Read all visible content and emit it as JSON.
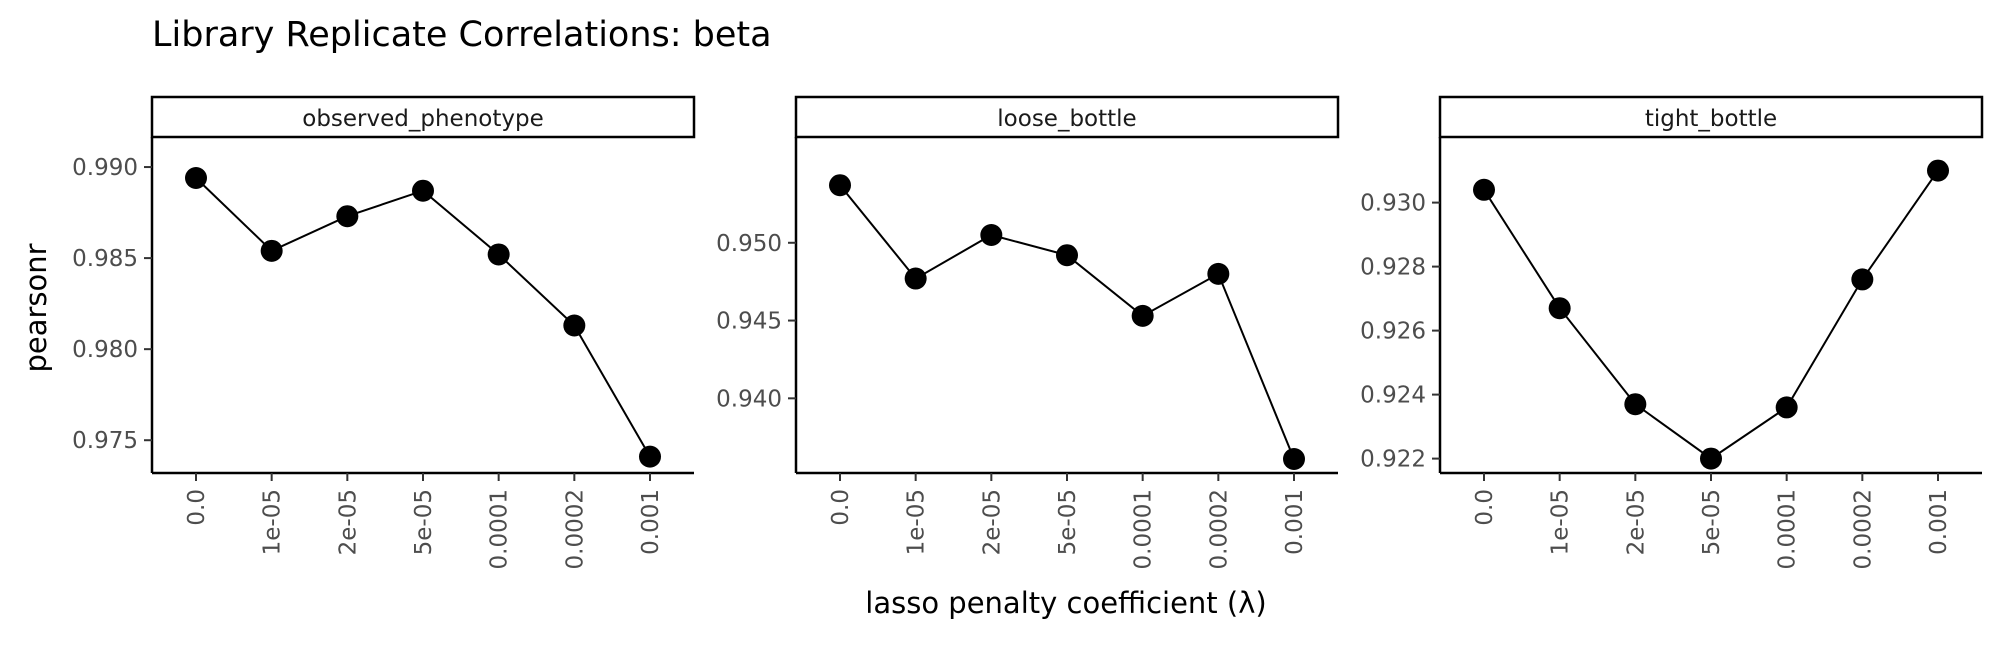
{
  "chart_data": {
    "type": "line",
    "title": "Library Replicate Correlations: beta",
    "xlabel": "lasso penalty coefficient (λ)",
    "ylabel": "pearsonr",
    "categories": [
      "0.0",
      "1e-05",
      "2e-05",
      "5e-05",
      "0.0001",
      "0.0002",
      "0.001"
    ],
    "grid": false,
    "colors": {
      "line": "#000000",
      "point": "#000000",
      "frame": "#000000",
      "tick_text": "#4d4d4d"
    },
    "panels": [
      {
        "name": "observed_phenotype",
        "values": [
          0.9894,
          0.9854,
          0.9873,
          0.9887,
          0.9852,
          0.9813,
          0.9741
        ],
        "ylim": [
          0.9732,
          0.99165
        ],
        "yticks": [
          0.975,
          0.98,
          0.985,
          0.99
        ],
        "ytick_labels": [
          "0.975",
          "0.980",
          "0.985",
          "0.990"
        ]
      },
      {
        "name": "loose_bottle",
        "values": [
          0.9537,
          0.9477,
          0.9505,
          0.9492,
          0.9453,
          0.948,
          0.9361
        ],
        "ylim": [
          0.9352,
          0.9568
        ],
        "yticks": [
          0.94,
          0.945,
          0.95
        ],
        "ytick_labels": [
          "0.940",
          "0.945",
          "0.950"
        ]
      },
      {
        "name": "tight_bottle",
        "values": [
          0.9304,
          0.9267,
          0.9237,
          0.922,
          0.9236,
          0.9276,
          0.931
        ],
        "ylim": [
          0.92155,
          0.93205
        ],
        "yticks": [
          0.922,
          0.924,
          0.926,
          0.928,
          0.93
        ],
        "ytick_labels": [
          "0.922",
          "0.924",
          "0.926",
          "0.928",
          "0.930"
        ]
      }
    ]
  }
}
